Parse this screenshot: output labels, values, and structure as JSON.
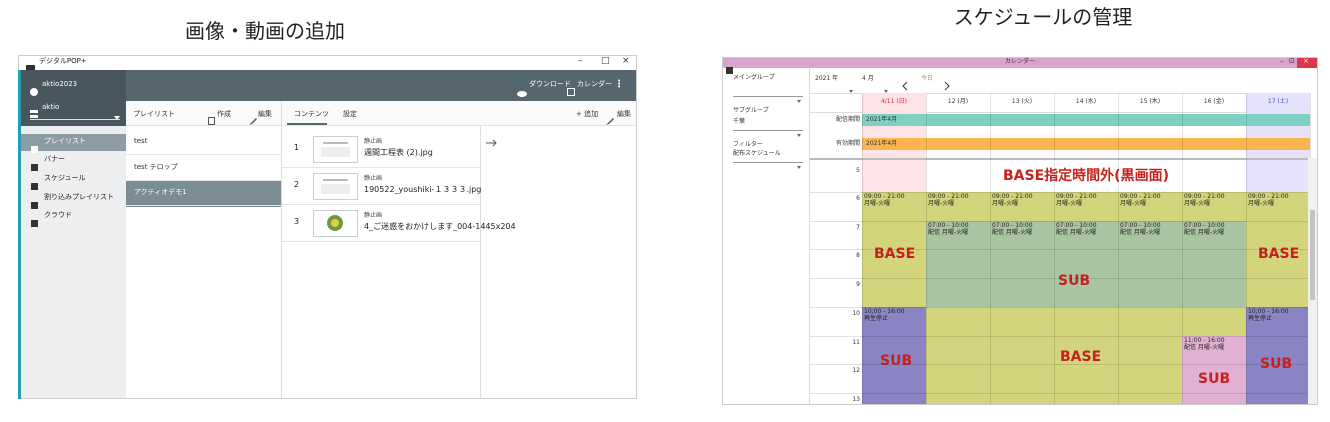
{
  "left_panel": {
    "caption": "画像・動画の追加",
    "app_title": "デジタルPOP+",
    "window_controls": [
      "–",
      "□",
      "×"
    ],
    "user": "aktio2023",
    "account": "aktio",
    "toolbar": [
      "ダウンロード",
      "カレンダー",
      "⋮"
    ],
    "menu": [
      "プレイリスト",
      "バナー",
      "スケジュール",
      "割り込みプレイリスト",
      "クラウド"
    ],
    "playlist_header": {
      "title": "プレイリスト",
      "create": "作成",
      "edit": "編集"
    },
    "playlists": [
      "test",
      "test テロップ",
      "アクティオデモ1"
    ],
    "tabs": [
      "コンテンツ",
      "設定"
    ],
    "contents": [
      {
        "no": "1",
        "type": "静止画",
        "file": "週間工程表 (2).jpg"
      },
      {
        "no": "2",
        "type": "静止画",
        "file": "190522_youshiki-１３３３.jpg"
      },
      {
        "no": "3",
        "type": "静止画",
        "file": "4_ご迷惑をおかけします_004-1445x204"
      }
    ],
    "actions": {
      "add": "+ 追加",
      "edit": "編集"
    }
  },
  "right_panel": {
    "caption": "スケジュールの管理",
    "window_title": "カレンダー",
    "window_controls": [
      "–",
      "⊡",
      "×"
    ],
    "filters": [
      {
        "label": "メイングループ"
      },
      {
        "label": "サブグループ",
        "value": "千葉"
      },
      {
        "label": "フィルター",
        "value": "配布スケジュール"
      }
    ],
    "year": "2021 年",
    "month": "4 月",
    "today": "今日",
    "days": [
      "4/11 (日)",
      "12 (月)",
      "13 (火)",
      "14 (水)",
      "15 (木)",
      "16 (金)",
      "17 (土)"
    ],
    "periods": [
      {
        "label": "配信期間",
        "bar": "2021年4月"
      },
      {
        "label": "有効期間",
        "bar": "2021年4月"
      }
    ],
    "hours": [
      "5",
      "6",
      "7",
      "8",
      "9",
      "10",
      "11",
      "12",
      "13"
    ],
    "blackout": "BASE指定時間外(黒画面)",
    "events": [
      {
        "time": "09:00 - 21:00",
        "note": "月曜-火曜"
      },
      {
        "time": "07:00 - 10:00",
        "note": "配信 月曜-火曜"
      },
      {
        "time": "10:00 - 16:00",
        "note": "再生停止"
      },
      {
        "time": "11:00 - 16:00",
        "note": "配信 月曜-火曜"
      }
    ],
    "labels": [
      "BASE",
      "SUB"
    ]
  }
}
